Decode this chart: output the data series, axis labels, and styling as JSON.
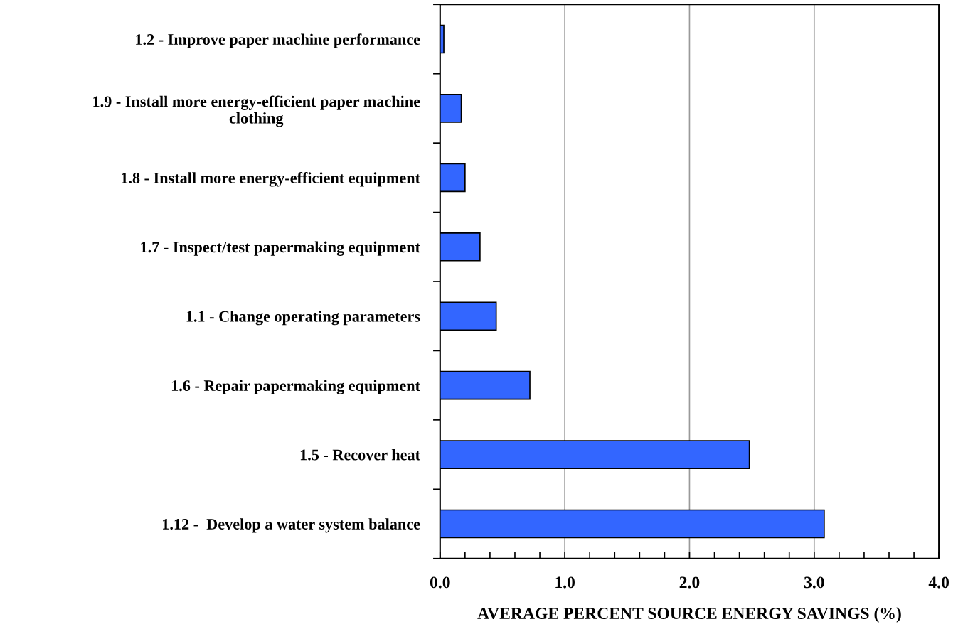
{
  "chart_data": {
    "type": "bar",
    "orientation": "horizontal",
    "categories": [
      "1.2 - Improve paper machine performance",
      "1.9 - Install more energy-efficient paper machine\nclothing",
      "1.8 - Install more energy-efficient equipment",
      "1.7 - Inspect/test papermaking equipment",
      "1.1 - Change operating parameters",
      "1.6 - Repair papermaking equipment",
      "1.5 - Recover heat",
      "1.12 -  Develop a water system balance"
    ],
    "values": [
      0.03,
      0.17,
      0.2,
      0.32,
      0.45,
      0.72,
      2.48,
      3.08
    ],
    "color": "#3366ff",
    "xlabel": "AVERAGE PERCENT SOURCE ENERGY SAVINGS (%)",
    "xlim": [
      0,
      4
    ],
    "xticks": [
      {
        "value": 0,
        "label": "0.0"
      },
      {
        "value": 1,
        "label": "1.0"
      },
      {
        "value": 2,
        "label": "2.0"
      },
      {
        "value": 3,
        "label": "3.0"
      },
      {
        "value": 4,
        "label": "4.0"
      }
    ],
    "grid": "x",
    "legend": false
  }
}
